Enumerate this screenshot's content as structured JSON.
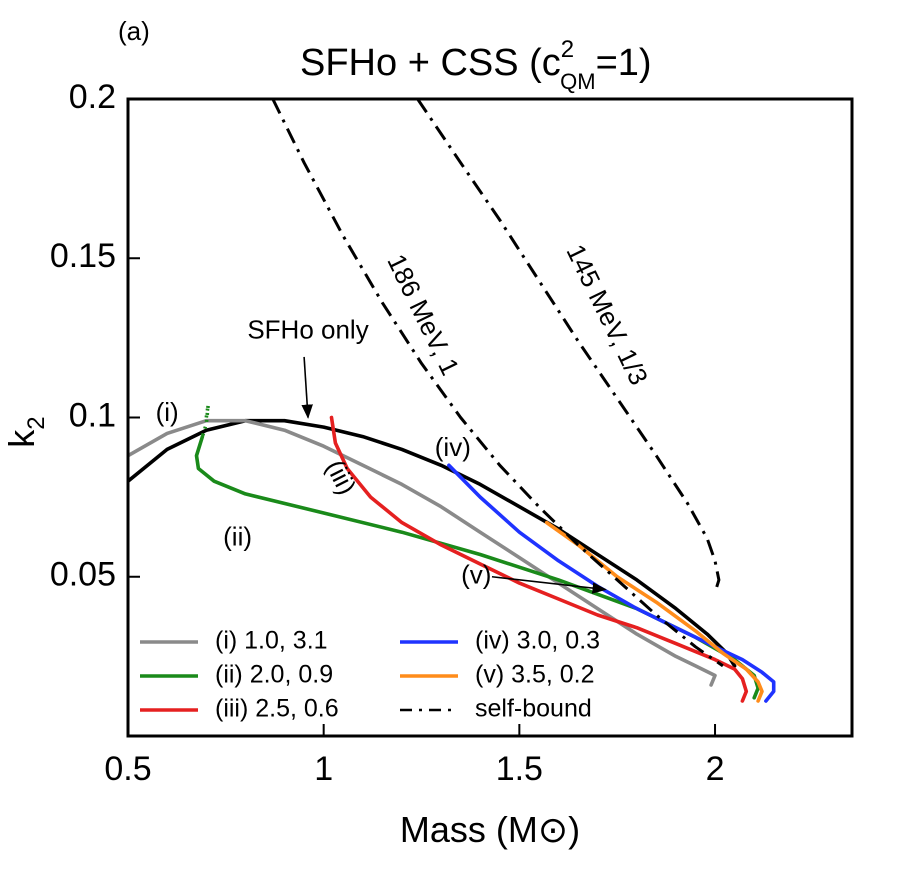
{
  "panel_label": "(a)",
  "title": {
    "main": "SFHo + CSS (c",
    "sup": "2",
    "sub": "QM",
    "tail": "=1)"
  },
  "chart_data": {
    "type": "line",
    "xlabel": "Mass (M⊙)",
    "ylabel": {
      "base": "k",
      "sub": "2"
    },
    "xlim": [
      0.5,
      2.35
    ],
    "ylim": [
      0.0,
      0.2
    ],
    "xticks": [
      {
        "value": 0.5,
        "label": "0.5"
      },
      {
        "value": 1.0,
        "label": "1"
      },
      {
        "value": 1.5,
        "label": "1.5"
      },
      {
        "value": 2.0,
        "label": "2"
      }
    ],
    "yticks": [
      {
        "value": 0.05,
        "label": "0.05"
      },
      {
        "value": 0.1,
        "label": "0.1"
      },
      {
        "value": 0.15,
        "label": "0.15"
      },
      {
        "value": 0.2,
        "label": "0.2"
      }
    ],
    "grid": false,
    "legend_position": "bottom-left",
    "series": [
      {
        "name": "SFHo only",
        "color": "#000000",
        "dash": "solid",
        "in_legend": false,
        "x": [
          0.5,
          0.6,
          0.7,
          0.8,
          0.9,
          1.0,
          1.1,
          1.2,
          1.3,
          1.4,
          1.5,
          1.6,
          1.7,
          1.8,
          1.9,
          1.98,
          2.03,
          2.05
        ],
        "y": [
          0.08,
          0.09,
          0.096,
          0.099,
          0.099,
          0.097,
          0.094,
          0.09,
          0.085,
          0.079,
          0.072,
          0.065,
          0.057,
          0.049,
          0.04,
          0.032,
          0.026,
          0.022
        ]
      },
      {
        "name": "(i) 1.0, 3.1",
        "color": "#8a8a8a",
        "dash": "solid",
        "in_legend": true,
        "x": [
          0.5,
          0.6,
          0.7,
          0.8,
          0.9,
          1.0,
          1.1,
          1.2,
          1.3,
          1.4,
          1.5,
          1.6,
          1.7,
          1.8,
          1.9,
          1.95,
          2.0,
          1.99
        ],
        "y": [
          0.088,
          0.095,
          0.099,
          0.099,
          0.096,
          0.091,
          0.085,
          0.079,
          0.072,
          0.064,
          0.056,
          0.048,
          0.04,
          0.032,
          0.025,
          0.022,
          0.019,
          0.016
        ]
      },
      {
        "name": "(ii) 2.0, 0.9",
        "color": "#1a8a1a",
        "dash": "solid",
        "in_legend": true,
        "x": [
          0.69,
          0.675,
          0.68,
          0.72,
          0.8,
          1.0,
          1.2,
          1.4,
          1.6,
          1.8,
          1.95,
          2.05,
          2.1,
          2.11,
          2.1
        ],
        "y": [
          0.094,
          0.088,
          0.084,
          0.08,
          0.076,
          0.07,
          0.064,
          0.057,
          0.049,
          0.04,
          0.031,
          0.024,
          0.019,
          0.015,
          0.012
        ]
      },
      {
        "name": "(ii) 2.0, 0.9 dotted",
        "color": "#1a8a1a",
        "dash": "dotted",
        "in_legend": false,
        "x": [
          0.7,
          0.705,
          0.7,
          0.69
        ],
        "y": [
          0.1,
          0.104,
          0.098,
          0.094
        ]
      },
      {
        "name": "(iii) 2.5, 0.6",
        "color": "#e52020",
        "dash": "solid",
        "in_legend": true,
        "x": [
          1.02,
          1.03,
          1.06,
          1.12,
          1.2,
          1.3,
          1.4,
          1.5,
          1.6,
          1.7,
          1.8,
          1.9,
          2.0,
          2.05,
          2.07,
          2.08,
          2.07
        ],
        "y": [
          0.1,
          0.092,
          0.084,
          0.075,
          0.067,
          0.06,
          0.054,
          0.048,
          0.043,
          0.038,
          0.034,
          0.029,
          0.024,
          0.021,
          0.018,
          0.014,
          0.011
        ]
      },
      {
        "name": "(iv) 3.0, 0.3",
        "color": "#1f33ff",
        "dash": "solid",
        "in_legend": true,
        "x": [
          1.32,
          1.4,
          1.5,
          1.6,
          1.7,
          1.8,
          1.9,
          2.0,
          2.07,
          2.12,
          2.15,
          2.15,
          2.13
        ],
        "y": [
          0.085,
          0.075,
          0.064,
          0.055,
          0.047,
          0.04,
          0.034,
          0.028,
          0.024,
          0.02,
          0.017,
          0.014,
          0.011
        ]
      },
      {
        "name": "(v) 3.5, 0.2",
        "color": "#ff8c1a",
        "dash": "solid",
        "in_legend": true,
        "x": [
          1.57,
          1.65,
          1.75,
          1.85,
          1.95,
          2.02,
          2.08,
          2.11,
          2.12,
          2.11
        ],
        "y": [
          0.067,
          0.06,
          0.05,
          0.042,
          0.033,
          0.026,
          0.021,
          0.017,
          0.014,
          0.011
        ]
      },
      {
        "name": "self-bound 186 MeV, 1",
        "color": "#000000",
        "dash": "dashdot",
        "in_legend": false,
        "x": [
          0.87,
          0.95,
          1.05,
          1.15,
          1.25,
          1.35,
          1.45,
          1.55,
          1.65,
          1.75,
          1.85,
          1.95,
          2.02
        ],
        "y": [
          0.2,
          0.18,
          0.157,
          0.136,
          0.117,
          0.1,
          0.085,
          0.072,
          0.06,
          0.049,
          0.038,
          0.028,
          0.022
        ]
      },
      {
        "name": "self-bound 145 MeV, 1/3",
        "color": "#000000",
        "dash": "dashdot",
        "in_legend": false,
        "x": [
          1.24,
          1.35,
          1.45,
          1.55,
          1.65,
          1.75,
          1.85,
          1.93,
          1.98,
          2.0,
          2.01,
          2.0
        ],
        "y": [
          0.2,
          0.18,
          0.162,
          0.143,
          0.124,
          0.106,
          0.088,
          0.073,
          0.062,
          0.055,
          0.049,
          0.045
        ]
      },
      {
        "name": "self-bound",
        "color": "#000000",
        "dash": "dashdot",
        "in_legend": true,
        "x": [],
        "y": []
      }
    ],
    "annotations": [
      {
        "text": "SFHo only",
        "x": 0.96,
        "y": 0.127,
        "anchor": "middle",
        "rotate": 0
      },
      {
        "text": "(i)",
        "x": 0.6,
        "y": 0.101,
        "anchor": "middle",
        "rotate": 0
      },
      {
        "text": "(ii)",
        "x": 0.78,
        "y": 0.062,
        "anchor": "middle",
        "rotate": 0
      },
      {
        "text": "(iii)",
        "x": 1.04,
        "y": 0.081,
        "anchor": "middle",
        "rotate": 63
      },
      {
        "text": "(iv)",
        "x": 1.33,
        "y": 0.09,
        "anchor": "middle",
        "rotate": 0
      },
      {
        "text": "(v)",
        "x": 1.39,
        "y": 0.05,
        "anchor": "middle",
        "rotate": 0
      },
      {
        "text": "186 MeV, 1",
        "x": 1.25,
        "y": 0.132,
        "anchor": "middle",
        "rotate": 64
      },
      {
        "text": "145 MeV, 1/3",
        "x": 1.72,
        "y": 0.132,
        "anchor": "middle",
        "rotate": 64
      }
    ],
    "arrows": [
      {
        "from": [
          0.95,
          0.119
        ],
        "to": [
          0.96,
          0.1
        ]
      },
      {
        "from": [
          1.43,
          0.05
        ],
        "to": [
          1.72,
          0.046
        ]
      }
    ]
  }
}
